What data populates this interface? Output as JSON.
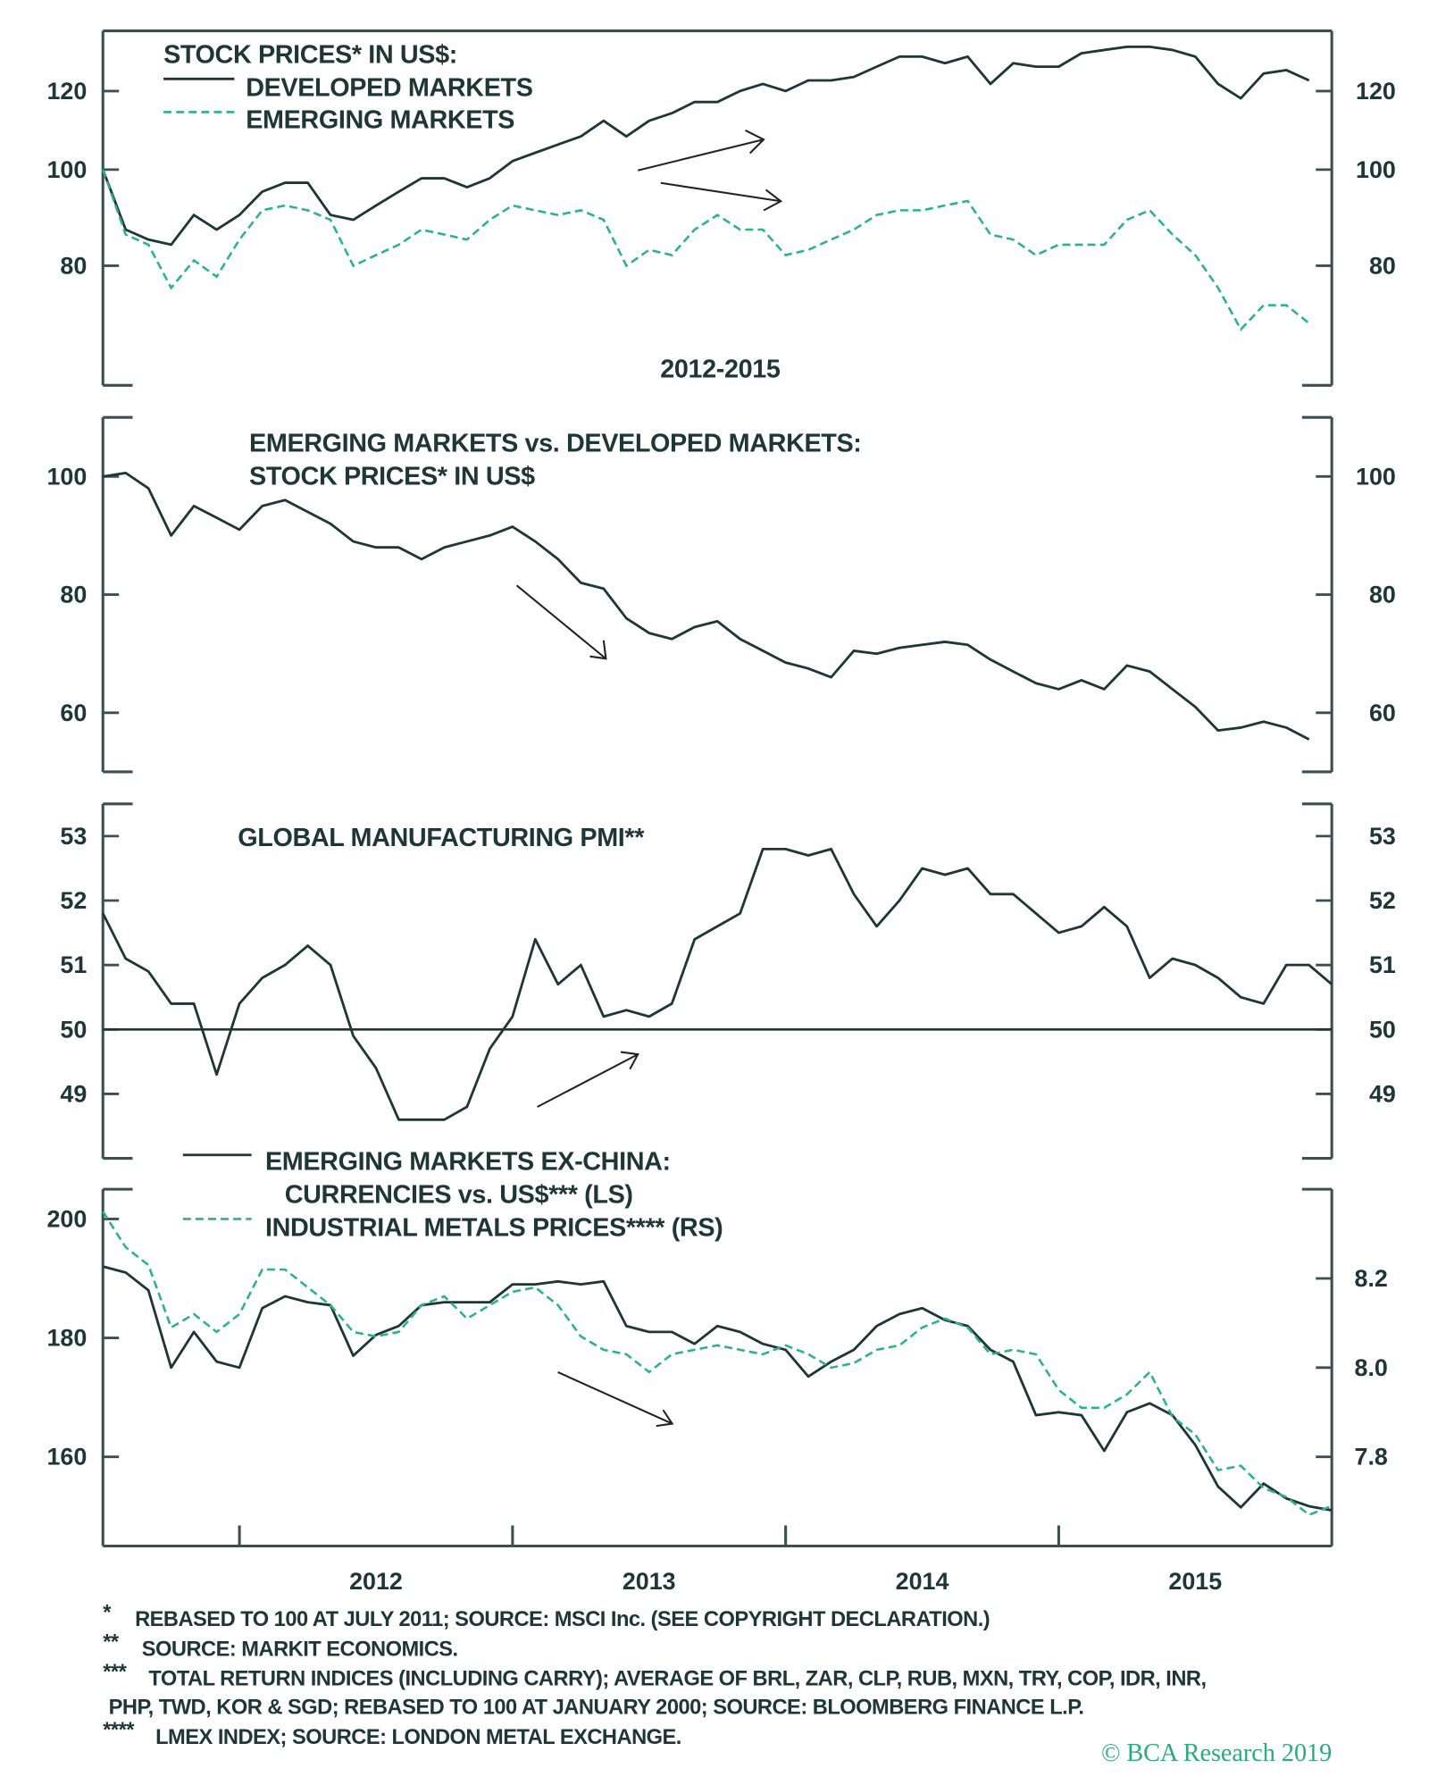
{
  "chart_data": [
    {
      "type": "line",
      "title": "STOCK PRICES* IN US$:",
      "subtitle": "2012-2015",
      "y_scale": "log",
      "ylim": [
        60.6,
        138
      ],
      "yticks": [
        120,
        100,
        80
      ],
      "xlim": [
        2011.5,
        2016.0
      ],
      "x_start": "2011-07",
      "frequency": "monthly",
      "series": [
        {
          "name": "DEVELOPED MARKETS",
          "style": "solid",
          "color": "#1e3636",
          "values": [
            100,
            87,
            85,
            84,
            90,
            87,
            90,
            95,
            97,
            97,
            90,
            89,
            92,
            95,
            98,
            98,
            96,
            98,
            102,
            104,
            106,
            108,
            112,
            108,
            112,
            114,
            117,
            117,
            120,
            122,
            120,
            123,
            123,
            124,
            127,
            130,
            130,
            128,
            130,
            122,
            128,
            127,
            127,
            131,
            132,
            133,
            133,
            132,
            130,
            122,
            118,
            125,
            126,
            123
          ]
        },
        {
          "name": "EMERGING MARKETS",
          "style": "dashed",
          "color": "#2bb383",
          "values": [
            100,
            86,
            84,
            76,
            81,
            78,
            85,
            91,
            92,
            91,
            89,
            80,
            82,
            84,
            87,
            86,
            85,
            89,
            92,
            91,
            90,
            91,
            89,
            80,
            83,
            82,
            87,
            90,
            87,
            87,
            82,
            83,
            85,
            87,
            90,
            91,
            91,
            92,
            93,
            86,
            85,
            82,
            84,
            84,
            84,
            89,
            91,
            86,
            82,
            76,
            69,
            73,
            73,
            70
          ]
        }
      ]
    },
    {
      "type": "line",
      "title": [
        "EMERGING MARKETS vs. DEVELOPED MARKETS:",
        "STOCK PRICES* IN US$"
      ],
      "ylim": [
        50,
        110
      ],
      "yticks": [
        100,
        80,
        60
      ],
      "xlim": [
        2011.5,
        2016.0
      ],
      "x_start": "2011-07",
      "frequency": "monthly",
      "series": [
        {
          "style": "solid",
          "color": "#1e3636",
          "values": [
            100,
            100.6,
            98,
            90,
            95,
            93,
            91,
            95,
            96,
            94,
            92,
            89,
            88,
            88,
            86,
            88,
            89,
            90,
            91.5,
            89,
            86,
            82,
            81,
            76,
            73.5,
            72.5,
            74.5,
            75.5,
            72.5,
            70.5,
            68.5,
            67.5,
            66,
            70.5,
            70,
            71,
            71.5,
            72,
            71.5,
            69,
            67,
            65,
            64,
            65.5,
            64,
            68,
            67,
            64,
            61,
            57,
            57.5,
            58.5,
            57.5,
            55.5
          ]
        }
      ]
    },
    {
      "type": "line",
      "title": "GLOBAL MANUFACTURING PMI**",
      "ylim": [
        48,
        53.5
      ],
      "yticks": [
        53,
        52,
        51,
        50,
        49
      ],
      "reference_line": 50,
      "xlim": [
        2011.5,
        2016.0
      ],
      "x_start": "2011-07",
      "frequency": "monthly",
      "series": [
        {
          "style": "solid",
          "color": "#1e3636",
          "values": [
            51.8,
            51.1,
            50.9,
            50.4,
            50.4,
            49.3,
            50.4,
            50.8,
            51.0,
            51.3,
            51.0,
            49.9,
            49.4,
            48.6,
            48.6,
            48.6,
            48.8,
            49.7,
            50.2,
            51.4,
            50.7,
            51.0,
            50.2,
            50.3,
            50.2,
            50.4,
            51.4,
            51.6,
            51.8,
            52.8,
            52.8,
            52.7,
            52.8,
            52.1,
            51.6,
            52.0,
            52.5,
            52.4,
            52.5,
            52.1,
            52.1,
            51.8,
            51.5,
            51.6,
            51.9,
            51.6,
            50.8,
            51.1,
            51.0,
            50.8,
            50.5,
            50.4,
            51.0,
            51.0,
            50.7
          ]
        }
      ]
    },
    {
      "type": "line",
      "legend_title": "EMERGING MARKETS EX-CHINA:",
      "ylim": [
        145,
        205
      ],
      "yticks": [
        200,
        180,
        160
      ],
      "y2lim": [
        7.6,
        8.4
      ],
      "y2ticks": [
        "8.2",
        "8.0",
        "7.8"
      ],
      "xlim": [
        2011.5,
        2016.0
      ],
      "x_start": "2011-07",
      "frequency": "monthly",
      "xticks": [
        "2012",
        "2013",
        "2014",
        "2015"
      ],
      "series": [
        {
          "name": "CURRENCIES vs. US$*** (LS)",
          "axis": "left",
          "style": "solid",
          "color": "#1e3636",
          "values": [
            192,
            191,
            188,
            175,
            181,
            176,
            175,
            185,
            187,
            186,
            185.5,
            177,
            180.5,
            182,
            185.5,
            186,
            186,
            186,
            189,
            189,
            189.5,
            189,
            189.5,
            182,
            181,
            181,
            179,
            182,
            181,
            179,
            178,
            173.5,
            176,
            178,
            182,
            184,
            185,
            183,
            182,
            178,
            176,
            167,
            167.5,
            167,
            161,
            167.5,
            169,
            167,
            162,
            155,
            151.5,
            155.5,
            153,
            151.7,
            151
          ]
        },
        {
          "name": "INDUSTRIAL METALS PRICES**** (RS)",
          "axis": "right",
          "style": "dashed",
          "color": "#2bb383",
          "values": [
            8.35,
            8.27,
            8.23,
            8.09,
            8.12,
            8.08,
            8.12,
            8.22,
            8.22,
            8.18,
            8.14,
            8.08,
            8.07,
            8.08,
            8.14,
            8.16,
            8.11,
            8.14,
            8.17,
            8.18,
            8.14,
            8.07,
            8.04,
            8.03,
            7.99,
            8.03,
            8.04,
            8.05,
            8.04,
            8.03,
            8.05,
            8.03,
            8.0,
            8.01,
            8.04,
            8.05,
            8.09,
            8.11,
            8.09,
            8.03,
            8.04,
            8.03,
            7.95,
            7.91,
            7.91,
            7.94,
            7.99,
            7.89,
            7.85,
            7.77,
            7.78,
            7.73,
            7.71,
            7.67,
            7.69
          ]
        }
      ]
    }
  ],
  "footnotes": [
    {
      "mark": "*",
      "text": "REBASED TO 100 AT JULY 2011; SOURCE: MSCI Inc. (SEE COPYRIGHT DECLARATION.)"
    },
    {
      "mark": "**",
      "text": "SOURCE: MARKIT ECONOMICS."
    },
    {
      "mark": "***",
      "text": "TOTAL RETURN INDICES (INCLUDING CARRY); AVERAGE OF BRL, ZAR, CLP, RUB, MXN, TRY, COP, IDR, INR,"
    },
    {
      "mark": "",
      "text": "PHP, TWD, KOR & SGD; REBASED TO 100 AT JANUARY 2000; SOURCE: BLOOMBERG FINANCE L.P."
    },
    {
      "mark": "****",
      "text": "LMEX INDEX; SOURCE: LONDON METAL EXCHANGE."
    }
  ],
  "logo": "© BCA Research 2019",
  "colors": {
    "dark": "#1e3636",
    "green": "#2bb383"
  }
}
